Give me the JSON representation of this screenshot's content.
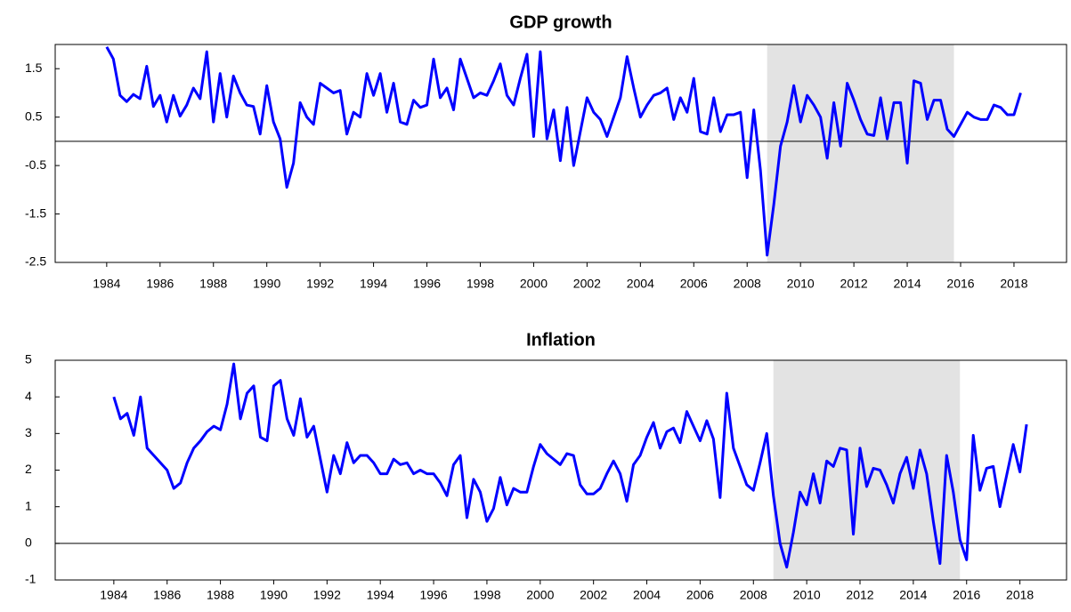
{
  "chart_data": [
    {
      "type": "line",
      "title": "GDP growth",
      "x": [
        1984,
        1984.25,
        1984.5,
        1984.75,
        1985,
        1985.25,
        1985.5,
        1985.75,
        1986,
        1986.25,
        1986.5,
        1986.75,
        1987,
        1987.25,
        1987.5,
        1987.75,
        1988,
        1988.25,
        1988.5,
        1988.75,
        1989,
        1989.25,
        1989.5,
        1989.75,
        1990,
        1990.25,
        1990.5,
        1990.75,
        1991,
        1991.25,
        1991.5,
        1991.75,
        1992,
        1992.25,
        1992.5,
        1992.75,
        1993,
        1993.25,
        1993.5,
        1993.75,
        1994,
        1994.25,
        1994.5,
        1994.75,
        1995,
        1995.25,
        1995.5,
        1995.75,
        1996,
        1996.25,
        1996.5,
        1996.75,
        1997,
        1997.25,
        1997.5,
        1997.75,
        1998,
        1998.25,
        1998.5,
        1998.75,
        1999,
        1999.25,
        1999.5,
        1999.75,
        2000,
        2000.25,
        2000.5,
        2000.75,
        2001,
        2001.25,
        2001.5,
        2001.75,
        2002,
        2002.25,
        2002.5,
        2002.75,
        2003,
        2003.25,
        2003.5,
        2003.75,
        2004,
        2004.25,
        2004.5,
        2004.75,
        2005,
        2005.25,
        2005.5,
        2005.75,
        2006,
        2006.25,
        2006.5,
        2006.75,
        2007,
        2007.25,
        2007.5,
        2007.75,
        2008,
        2008.25,
        2008.5,
        2008.75,
        2009,
        2009.25,
        2009.5,
        2009.75,
        2010,
        2010.25,
        2010.5,
        2010.75,
        2011,
        2011.25,
        2011.5,
        2011.75,
        2012,
        2012.25,
        2012.5,
        2012.75,
        2013,
        2013.25,
        2013.5,
        2013.75,
        2014,
        2014.25,
        2014.5,
        2014.75,
        2015,
        2015.25,
        2015.5,
        2015.75,
        2016,
        2016.25,
        2016.5,
        2016.75,
        2017,
        2017.25,
        2017.5,
        2017.75,
        2018,
        2018.25
      ],
      "series": [
        {
          "color": "#0000ff",
          "values": [
            1.95,
            1.7,
            0.95,
            0.82,
            0.97,
            0.88,
            1.55,
            0.72,
            0.95,
            0.4,
            0.95,
            0.52,
            0.75,
            1.1,
            0.88,
            1.85,
            0.4,
            1.4,
            0.5,
            1.35,
            1.0,
            0.75,
            0.72,
            0.15,
            1.15,
            0.4,
            0.05,
            -0.95,
            -0.45,
            0.8,
            0.5,
            0.35,
            1.2,
            1.1,
            1.0,
            1.05,
            0.15,
            0.6,
            0.5,
            1.4,
            0.95,
            1.4,
            0.6,
            1.2,
            0.4,
            0.35,
            0.85,
            0.7,
            0.75,
            1.7,
            0.9,
            1.1,
            0.65,
            1.7,
            1.3,
            0.9,
            1.0,
            0.95,
            1.25,
            1.6,
            0.95,
            0.75,
            1.3,
            1.8,
            0.1,
            1.85,
            0.05,
            0.65,
            -0.4,
            0.7,
            -0.5,
            0.2,
            0.9,
            0.6,
            0.45,
            0.1,
            0.5,
            0.9,
            1.75,
            1.1,
            0.5,
            0.75,
            0.95,
            1.0,
            1.1,
            0.45,
            0.9,
            0.6,
            1.3,
            0.2,
            0.15,
            0.9,
            0.2,
            0.55,
            0.55,
            0.6,
            -0.75,
            0.65,
            -0.6,
            -2.35,
            -1.3,
            -0.1,
            0.4,
            1.15,
            0.4,
            0.95,
            0.75,
            0.5,
            -0.35,
            0.8,
            -0.1,
            1.2,
            0.85,
            0.45,
            0.15,
            0.12,
            0.9,
            0.05,
            0.8,
            0.8,
            -0.45,
            1.25,
            1.2,
            0.45,
            0.85,
            0.85,
            0.25,
            0.1,
            0.35,
            0.6,
            0.5,
            0.45,
            0.45,
            0.75,
            0.7,
            0.55,
            0.55,
            1.0
          ]
        }
      ],
      "xlim": [
        1982.07,
        2019.97
      ],
      "xticks": [
        1984,
        1986,
        1988,
        1990,
        1992,
        1994,
        1996,
        1998,
        2000,
        2002,
        2004,
        2006,
        2008,
        2010,
        2012,
        2014,
        2016,
        2018
      ],
      "ylim": [
        -2.5,
        2.0
      ],
      "yticks": [
        1.5,
        0.5,
        -0.5,
        -1.5,
        -2.5
      ],
      "shaded_region": [
        2008.75,
        2015.75
      ],
      "zero_line": true
    },
    {
      "type": "line",
      "title": "Inflation",
      "x": [
        1984,
        1984.25,
        1984.5,
        1984.75,
        1985,
        1985.25,
        1985.5,
        1985.75,
        1986,
        1986.25,
        1986.5,
        1986.75,
        1987,
        1987.25,
        1987.5,
        1987.75,
        1988,
        1988.25,
        1988.5,
        1988.75,
        1989,
        1989.25,
        1989.5,
        1989.75,
        1990,
        1990.25,
        1990.5,
        1990.75,
        1991,
        1991.25,
        1991.5,
        1991.75,
        1992,
        1992.25,
        1992.5,
        1992.75,
        1993,
        1993.25,
        1993.5,
        1993.75,
        1994,
        1994.25,
        1994.5,
        1994.75,
        1995,
        1995.25,
        1995.5,
        1995.75,
        1996,
        1996.25,
        1996.5,
        1996.75,
        1997,
        1997.25,
        1997.5,
        1997.75,
        1998,
        1998.25,
        1998.5,
        1998.75,
        1999,
        1999.25,
        1999.5,
        1999.75,
        2000,
        2000.25,
        2000.5,
        2000.75,
        2001,
        2001.25,
        2001.5,
        2001.75,
        2002,
        2002.25,
        2002.5,
        2002.75,
        2003,
        2003.25,
        2003.5,
        2003.75,
        2004,
        2004.25,
        2004.5,
        2004.75,
        2005,
        2005.25,
        2005.5,
        2005.75,
        2006,
        2006.25,
        2006.5,
        2006.75,
        2007,
        2007.25,
        2007.5,
        2007.75,
        2008,
        2008.25,
        2008.5,
        2008.75,
        2009,
        2009.25,
        2009.5,
        2009.75,
        2010,
        2010.25,
        2010.5,
        2010.75,
        2011,
        2011.25,
        2011.5,
        2011.75,
        2012,
        2012.25,
        2012.5,
        2012.75,
        2013,
        2013.25,
        2013.5,
        2013.75,
        2014,
        2014.25,
        2014.5,
        2014.75,
        2015,
        2015.25,
        2015.5,
        2015.75,
        2016,
        2016.25,
        2016.5,
        2016.75,
        2017,
        2017.25,
        2017.5,
        2017.75,
        2018,
        2018.25
      ],
      "series": [
        {
          "color": "#0000ff",
          "values": [
            4.0,
            3.4,
            3.55,
            2.95,
            4.0,
            2.6,
            2.4,
            2.2,
            2.0,
            1.5,
            1.65,
            2.2,
            2.6,
            2.8,
            3.05,
            3.2,
            3.1,
            3.8,
            4.9,
            3.4,
            4.1,
            4.3,
            2.9,
            2.8,
            4.3,
            4.45,
            3.4,
            2.95,
            3.95,
            2.9,
            3.2,
            2.3,
            1.4,
            2.4,
            1.9,
            2.75,
            2.2,
            2.4,
            2.4,
            2.2,
            1.9,
            1.9,
            2.3,
            2.15,
            2.2,
            1.9,
            2.0,
            1.9,
            1.9,
            1.65,
            1.3,
            2.15,
            2.4,
            0.7,
            1.75,
            1.4,
            0.6,
            0.95,
            1.8,
            1.05,
            1.5,
            1.4,
            1.4,
            2.1,
            2.7,
            2.45,
            2.3,
            2.15,
            2.45,
            2.4,
            1.6,
            1.35,
            1.35,
            1.5,
            1.9,
            2.25,
            1.9,
            1.15,
            2.15,
            2.4,
            2.9,
            3.3,
            2.6,
            3.05,
            3.15,
            2.75,
            3.6,
            3.2,
            2.8,
            3.35,
            2.85,
            1.25,
            4.1,
            2.6,
            2.1,
            1.6,
            1.45,
            2.2,
            3.0,
            1.3,
            0.0,
            -0.65,
            0.3,
            1.4,
            1.05,
            1.9,
            1.1,
            2.25,
            2.1,
            2.6,
            2.55,
            0.25,
            2.6,
            1.55,
            2.05,
            2.0,
            1.6,
            1.1,
            1.9,
            2.35,
            1.5,
            2.55,
            1.9,
            0.6,
            -0.55,
            2.4,
            1.4,
            0.1,
            -0.45,
            2.95,
            1.45,
            2.05,
            2.1,
            1.0,
            1.85,
            2.7,
            1.95,
            3.25
          ]
        }
      ],
      "xlim": [
        1981.8,
        2019.75
      ],
      "xticks": [
        1984,
        1986,
        1988,
        1990,
        1992,
        1994,
        1996,
        1998,
        2000,
        2002,
        2004,
        2006,
        2008,
        2010,
        2012,
        2014,
        2016,
        2018
      ],
      "ylim": [
        -1,
        5
      ],
      "yticks": [
        5,
        4,
        3,
        2,
        1,
        0,
        -1
      ],
      "shaded_region": [
        2008.75,
        2015.75
      ],
      "zero_line": true
    }
  ]
}
